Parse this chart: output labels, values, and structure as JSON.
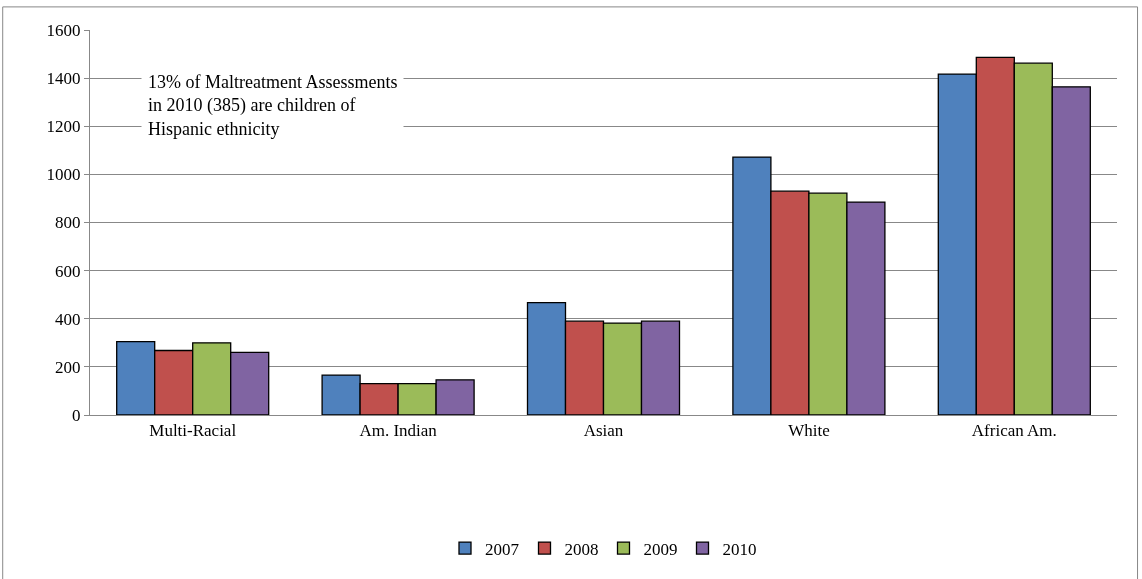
{
  "chart_data": {
    "type": "bar",
    "categories": [
      "Multi-Racial",
      "Am. Indian",
      "Asian",
      "White",
      "African Am."
    ],
    "series": [
      {
        "name": "2007",
        "color": "#4f81bd",
        "values": [
          305,
          166,
          467,
          1072,
          1417
        ]
      },
      {
        "name": "2008",
        "color": "#c0504d",
        "values": [
          268,
          130,
          390,
          930,
          1486
        ]
      },
      {
        "name": "2009",
        "color": "#9bbb59",
        "values": [
          300,
          130,
          382,
          922,
          1462
        ]
      },
      {
        "name": "2010",
        "color": "#8064a2",
        "values": [
          260,
          146,
          390,
          885,
          1364
        ]
      }
    ],
    "ylim": [
      0,
      1600
    ],
    "yticks": [
      0,
      200,
      400,
      600,
      800,
      1000,
      1200,
      1400,
      1600
    ],
    "grid": "y",
    "legend": "bottom",
    "annotations": [
      "13% of Maltreatment Assessments\nin 2010 (385) are children of\nHispanic ethnicity"
    ]
  }
}
